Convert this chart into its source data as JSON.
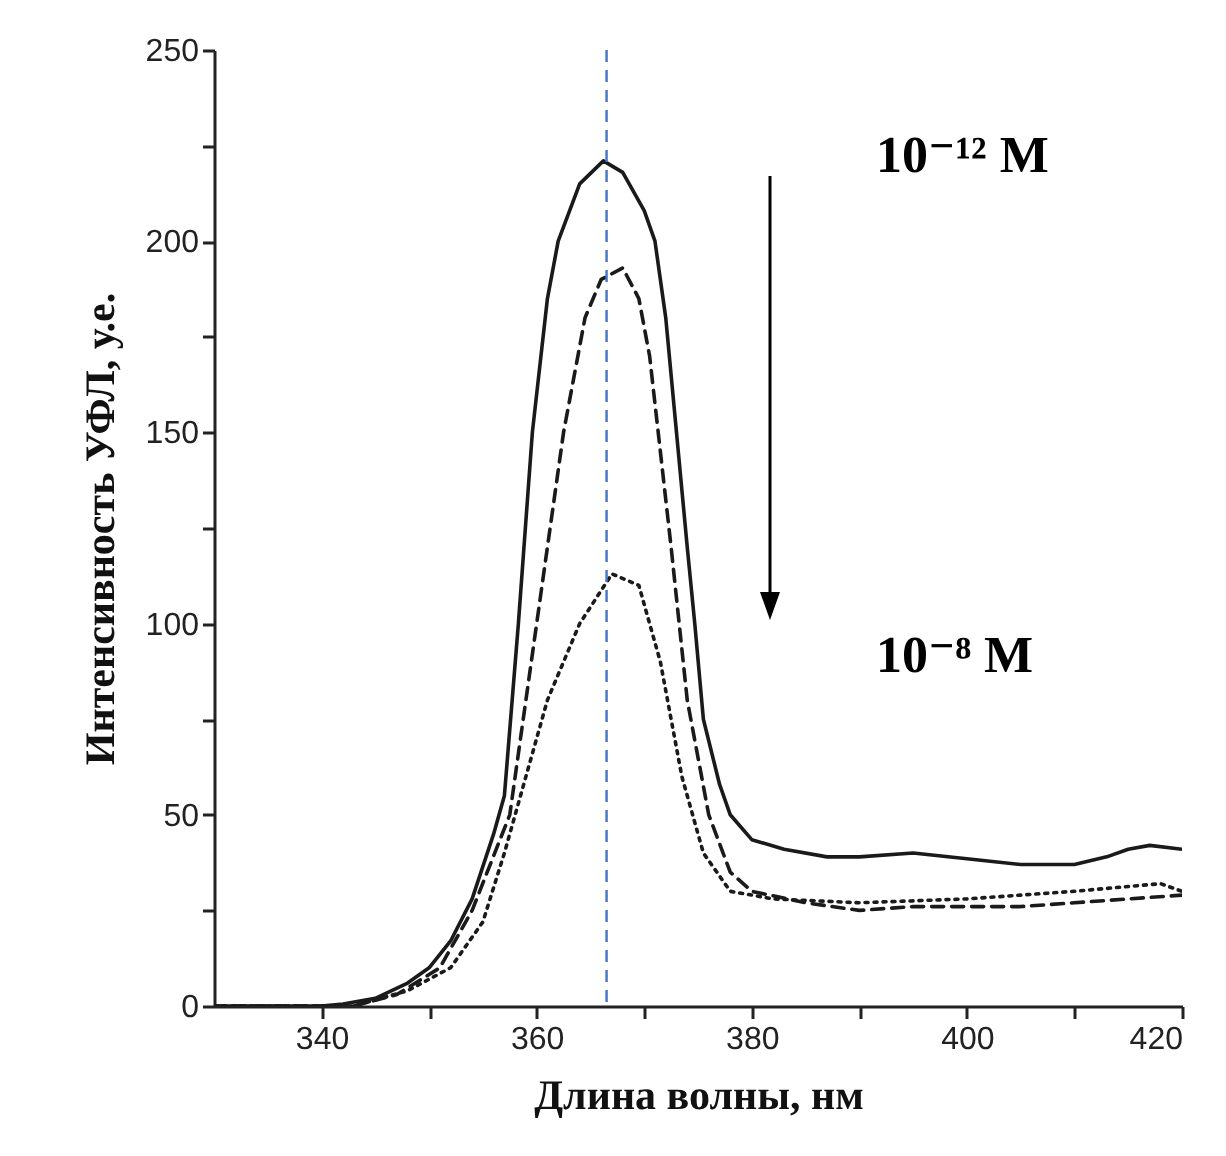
{
  "chart_data": {
    "type": "line",
    "xlabel": "Длина волны, нм",
    "ylabel": "Интенсивность УФЛ, у.е.",
    "annotations": [
      "10⁻¹² M",
      "10⁻⁸ M"
    ],
    "xlim": [
      330,
      420
    ],
    "xticks": [
      340,
      {
        "value": 350,
        "label": null
      },
      360,
      {
        "value": 370,
        "label": null
      },
      380,
      {
        "value": 390,
        "label": null
      },
      400,
      {
        "value": 410,
        "label": null
      },
      420
    ],
    "ylim": [
      0,
      250
    ],
    "yticks": [
      0,
      {
        "value": 25,
        "label": null
      },
      50,
      {
        "value": 75,
        "label": null
      },
      100,
      {
        "value": 125,
        "label": null
      },
      150,
      {
        "value": 175,
        "label": null
      },
      200,
      {
        "value": 225,
        "label": null
      },
      250
    ],
    "marker": "none",
    "ref_lines": [
      {
        "axis": "x",
        "value": 366.5,
        "color": "#4472c4",
        "line_style": "dashed"
      }
    ],
    "series": [
      {
        "color": "#1a1a1a",
        "line_style": "solid",
        "x": [
          330,
          340,
          342,
          345,
          348,
          350,
          352,
          354,
          356,
          357,
          358.3,
          359.6,
          361,
          362,
          364,
          366.2,
          368,
          370,
          371,
          372,
          373,
          374,
          374.7,
          375.5,
          377,
          378,
          380,
          383,
          387,
          390,
          395,
          400,
          405,
          410,
          413,
          415,
          417,
          420
        ],
        "values": [
          0,
          0,
          0.5,
          2,
          6,
          10,
          17,
          28,
          45,
          55,
          100,
          150,
          185,
          200,
          215,
          221,
          218,
          208,
          200,
          180,
          150,
          120,
          100,
          75,
          58,
          50,
          43.5,
          41,
          39,
          39,
          40,
          38.5,
          37,
          37,
          39,
          41,
          42,
          41
        ]
      },
      {
        "color": "#1a1a1a",
        "line_style": "dashed",
        "x": [
          330,
          343,
          347,
          351,
          354,
          357.5,
          360,
          362.5,
          364.5,
          366,
          368,
          369.5,
          370.5,
          372.5,
          374,
          376,
          378,
          380,
          385,
          390,
          395,
          400,
          405,
          410,
          415,
          420
        ],
        "values": [
          0,
          0,
          3,
          10,
          25,
          50,
          100,
          150,
          180,
          190,
          193,
          185,
          170,
          120,
          80,
          50,
          35,
          30,
          27,
          25,
          26,
          26,
          26,
          27,
          28,
          29
        ]
      },
      {
        "color": "#1a1a1a",
        "line_style": "dotted",
        "x": [
          330,
          343,
          348,
          352,
          355,
          357,
          359,
          361,
          364,
          367,
          369.5,
          371.5,
          373.5,
          375.5,
          378,
          382,
          390,
          400,
          410,
          418,
          420
        ],
        "values": [
          0,
          0,
          4,
          10,
          22,
          40,
          60,
          80,
          100,
          113,
          110,
          90,
          60,
          40,
          30,
          28,
          27,
          28,
          30,
          32,
          30
        ]
      }
    ]
  }
}
